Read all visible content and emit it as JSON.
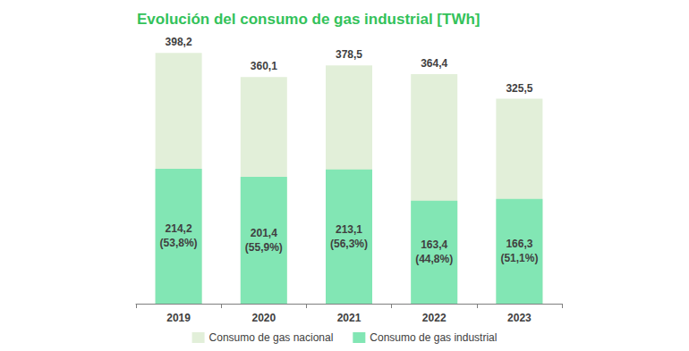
{
  "chart_data": {
    "type": "bar",
    "title": "Evolución del consumo de gas industrial [TWh]",
    "categories": [
      "2019",
      "2020",
      "2021",
      "2022",
      "2023"
    ],
    "series": [
      {
        "name": "Consumo de gas nacional",
        "color": "#e2efd9",
        "values": [
          398.2,
          360.1,
          378.5,
          364.4,
          325.5
        ],
        "value_labels": [
          "398,2",
          "360,1",
          "378,5",
          "364,4",
          "325,5"
        ]
      },
      {
        "name": "Consumo de gas industrial",
        "color": "#82e6b4",
        "values": [
          214.2,
          201.4,
          213.1,
          163.4,
          166.3
        ],
        "value_labels": [
          "214,2\n(53,8%)",
          "201,4\n(55,9%)",
          "213,1\n(56,3%)",
          "163,4\n(44,8%)",
          "166,3\n(51,1%)"
        ]
      }
    ],
    "ylim": [
      0,
      400
    ],
    "yticks": [
      0,
      100,
      200,
      300,
      400
    ],
    "stacked": false,
    "data_labels": true,
    "grid": false,
    "tick_labels": "x",
    "legend": "bottom"
  }
}
